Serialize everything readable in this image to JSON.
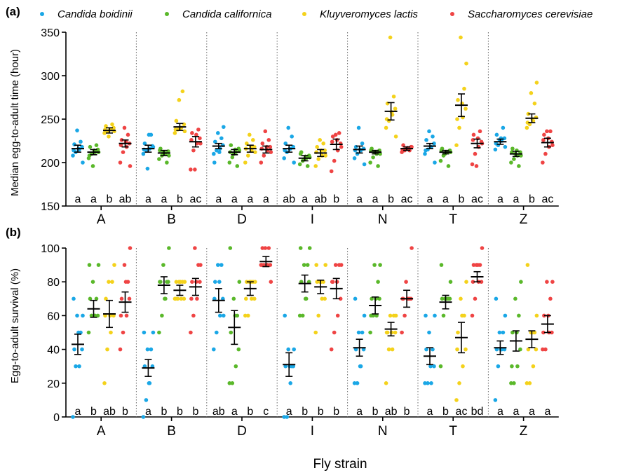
{
  "figure": {
    "xlabel": "Fly strain",
    "strains": [
      "A",
      "B",
      "D",
      "I",
      "N",
      "T",
      "Z"
    ]
  },
  "species": [
    {
      "name": "Candida boidinii",
      "color": "#1aa7e6"
    },
    {
      "name": "Candida californica",
      "color": "#5ab82a"
    },
    {
      "name": "Kluyveromyces lactis",
      "color": "#f4d21b"
    },
    {
      "name": "Saccharomyces cerevisiae",
      "color": "#ef4444"
    }
  ],
  "chart_data": [
    {
      "type": "scatter",
      "panel": "(a)",
      "ylabel": "Median egg-to-adult time (hour)",
      "ylim": [
        150,
        350
      ],
      "yticks": [
        150,
        200,
        250,
        300,
        350
      ],
      "categories": [
        "A",
        "B",
        "D",
        "I",
        "N",
        "T",
        "Z"
      ],
      "series": [
        {
          "name": "Candida boidinii",
          "mean": [
            216,
            216,
            219,
            216,
            215,
            219,
            224
          ],
          "sem": [
            4,
            4,
            3,
            4,
            4,
            3,
            3
          ],
          "points": [
            [
              208,
              212,
              215,
              218,
              221,
              224,
              237,
              200,
              214,
              216
            ],
            [
              210,
              214,
              216,
              219,
              222,
              232,
              193,
              218,
              215,
              232
            ],
            [
              210,
              214,
              216,
              220,
              224,
              228,
              234,
              241,
              200,
              212
            ],
            [
              205,
              212,
              216,
              218,
              222,
              230,
              240,
              200,
              214,
              216
            ],
            [
              205,
              210,
              214,
              216,
              218,
              222,
              240,
              198,
              214,
              215
            ],
            [
              210,
              215,
              218,
              222,
              226,
              230,
              236,
              200,
              214,
              218
            ],
            [
              215,
              220,
              225,
              228,
              232,
              240,
              226,
              218,
              222,
              228
            ]
          ]
        },
        {
          "name": "Candida californica",
          "mean": [
            212,
            211,
            212,
            205,
            212,
            212,
            210
          ],
          "sem": [
            3,
            3,
            3,
            3,
            2,
            2,
            3
          ],
          "points": [
            [
              205,
              210,
              212,
              215,
              218,
              220,
              196,
              212,
              208,
              214
            ],
            [
              204,
              208,
              210,
              213,
              216,
              200,
              212,
              208,
              214,
              211
            ],
            [
              200,
              206,
              212,
              216,
              220,
              196,
              210,
              214,
              212,
              215
            ],
            [
              198,
              202,
              205,
              208,
              212,
              196,
              204,
              206,
              210,
              207
            ],
            [
              200,
              206,
              210,
              214,
              216,
              196,
              212,
              210,
              214,
              212
            ],
            [
              202,
              208,
              212,
              214,
              216,
              196,
              210,
              212,
              214,
              212
            ],
            [
              200,
              204,
              208,
              212,
              216,
              196,
              210,
              208,
              212,
              214
            ]
          ]
        },
        {
          "name": "Kluyveromyces lactis",
          "mean": [
            237,
            241,
            216,
            211,
            259,
            266,
            251
          ],
          "sem": [
            3,
            4,
            4,
            4,
            10,
            13,
            5
          ],
          "points": [
            [
              234,
              236,
              238,
              240,
              242,
              244,
              230,
              236,
              238,
              238
            ],
            [
              234,
              238,
              240,
              244,
              248,
              282,
              272,
              236,
              238,
              240
            ],
            [
              200,
              208,
              214,
              218,
              222,
              226,
              232,
              212,
              216,
              218
            ],
            [
              196,
              204,
              208,
              214,
              218,
              222,
              226,
              208,
              212,
              214
            ],
            [
              240,
              248,
              255,
              262,
              268,
              276,
              344,
              230,
              250,
              258
            ],
            [
              220,
              240,
              252,
              262,
              272,
              285,
              344,
              314,
              250,
              268
            ],
            [
              240,
              244,
              248,
              252,
              256,
              268,
              280,
              292,
              246,
              250
            ]
          ]
        },
        {
          "name": "Saccharomyces cerevisiae",
          "mean": [
            222,
            224,
            215,
            221,
            216,
            222,
            223
          ],
          "sem": [
            4,
            6,
            4,
            6,
            2,
            5,
            5
          ],
          "points": [
            [
              200,
              212,
              218,
              222,
              226,
              232,
              240,
              196,
              220,
              224
            ],
            [
              192,
              214,
              222,
              228,
              234,
              238,
              192,
              222,
              226,
              232
            ],
            [
              200,
              208,
              214,
              218,
              222,
              226,
              236,
              212,
              216,
              218
            ],
            [
              190,
              202,
              214,
              222,
              230,
              234,
              232,
              218,
              224,
              226
            ],
            [
              212,
              214,
              216,
              218,
              220,
              214,
              216,
              218,
              215,
              217
            ],
            [
              198,
              210,
              218,
              224,
              232,
              236,
              196,
              222,
              226,
              228
            ],
            [
              200,
              210,
              218,
              224,
              232,
              236,
              236,
              220,
              226,
              228
            ]
          ]
        }
      ],
      "letters": [
        [
          "a",
          "a",
          "b",
          "ab"
        ],
        [
          "a",
          "a",
          "b",
          "ac"
        ],
        [
          "a",
          "a",
          "a",
          "a"
        ],
        [
          "ab",
          "a",
          "ab",
          "b"
        ],
        [
          "a",
          "a",
          "b",
          "ac"
        ],
        [
          "a",
          "a",
          "b",
          "ac"
        ],
        [
          "a",
          "a",
          "b",
          "ac"
        ]
      ]
    },
    {
      "type": "scatter",
      "panel": "(b)",
      "ylabel": "Egg-to-adult survival (%)",
      "ylim": [
        0,
        100
      ],
      "yticks": [
        0,
        20,
        40,
        60,
        80,
        100
      ],
      "categories": [
        "A",
        "B",
        "D",
        "I",
        "N",
        "T",
        "Z"
      ],
      "series": [
        {
          "name": "Candida boidinii",
          "mean": [
            43,
            29,
            69,
            31,
            41,
            36,
            41
          ],
          "sem": [
            6,
            5,
            7,
            7,
            5,
            5,
            4
          ],
          "points": [
            [
              0,
              30,
              30,
              40,
              40,
              50,
              60,
              60,
              70,
              50
            ],
            [
              0,
              10,
              20,
              30,
              30,
              40,
              40,
              50,
              50,
              20
            ],
            [
              40,
              50,
              60,
              70,
              80,
              90,
              90,
              60,
              70,
              80
            ],
            [
              0,
              0,
              20,
              30,
              30,
              30,
              40,
              40,
              60,
              30
            ],
            [
              20,
              20,
              30,
              40,
              40,
              50,
              50,
              60,
              70,
              30
            ],
            [
              20,
              20,
              20,
              30,
              40,
              40,
              50,
              60,
              60,
              30
            ],
            [
              10,
              30,
              40,
              40,
              40,
              50,
              50,
              60,
              70,
              40
            ]
          ]
        },
        {
          "name": "Candida californica",
          "mean": [
            64,
            78,
            53,
            79,
            66,
            68,
            45
          ],
          "sem": [
            5,
            5,
            10,
            5,
            5,
            4,
            6
          ],
          "points": [
            [
              50,
              60,
              60,
              60,
              70,
              70,
              80,
              90,
              90,
              60
            ],
            [
              50,
              60,
              70,
              80,
              80,
              80,
              90,
              100,
              80,
              70
            ],
            [
              20,
              20,
              30,
              40,
              50,
              60,
              70,
              80,
              100,
              60
            ],
            [
              60,
              60,
              70,
              80,
              80,
              90,
              90,
              100,
              100,
              70
            ],
            [
              50,
              60,
              60,
              70,
              70,
              80,
              90,
              90,
              60,
              70
            ],
            [
              30,
              60,
              70,
              70,
              70,
              70,
              70,
              80,
              90,
              70
            ],
            [
              20,
              20,
              30,
              40,
              50,
              60,
              70,
              80,
              30,
              50
            ]
          ]
        },
        {
          "name": "Kluyveromyces lactis",
          "mean": [
            61,
            75,
            76,
            77,
            52,
            47,
            46
          ],
          "sem": [
            8,
            3,
            4,
            4,
            4,
            9,
            5
          ],
          "points": [
            [
              20,
              40,
              50,
              60,
              70,
              80,
              80,
              90,
              60,
              60
            ],
            [
              70,
              70,
              70,
              70,
              80,
              80,
              80,
              80,
              70,
              80
            ],
            [
              60,
              60,
              70,
              70,
              80,
              80,
              80,
              80,
              70,
              80
            ],
            [
              50,
              60,
              70,
              70,
              80,
              80,
              80,
              90,
              90,
              80
            ],
            [
              20,
              40,
              40,
              50,
              50,
              60,
              60,
              60,
              50,
              50
            ],
            [
              10,
              20,
              30,
              40,
              50,
              60,
              70,
              80,
              40,
              60
            ],
            [
              20,
              20,
              30,
              40,
              40,
              50,
              50,
              60,
              90,
              50
            ]
          ]
        },
        {
          "name": "Saccharomyces cerevisiae",
          "mean": [
            68,
            77,
            92,
            76,
            70,
            83,
            55
          ],
          "sem": [
            6,
            5,
            3,
            6,
            5,
            3,
            5
          ],
          "points": [
            [
              40,
              50,
              60,
              70,
              70,
              80,
              90,
              100,
              60,
              80
            ],
            [
              50,
              60,
              70,
              80,
              80,
              90,
              100,
              90,
              70,
              80
            ],
            [
              90,
              90,
              90,
              90,
              100,
              100,
              100,
              80,
              90,
              90
            ],
            [
              40,
              50,
              60,
              70,
              80,
              90,
              90,
              90,
              80,
              80
            ],
            [
              50,
              60,
              70,
              70,
              70,
              70,
              80,
              100,
              70,
              70
            ],
            [
              60,
              70,
              80,
              80,
              90,
              90,
              90,
              100,
              80,
              90
            ],
            [
              40,
              40,
              50,
              50,
              60,
              70,
              80,
              80,
              50,
              60
            ]
          ]
        }
      ],
      "letters": [
        [
          "a",
          "b",
          "ab",
          "b"
        ],
        [
          "a",
          "b",
          "b",
          "b"
        ],
        [
          "ab",
          "a",
          "b",
          "c"
        ],
        [
          "a",
          "b",
          "b",
          "b"
        ],
        [
          "a",
          "b",
          "ab",
          "b"
        ],
        [
          "a",
          "b",
          "ac",
          "bd"
        ],
        [
          "a",
          "a",
          "a",
          "a"
        ]
      ]
    }
  ]
}
